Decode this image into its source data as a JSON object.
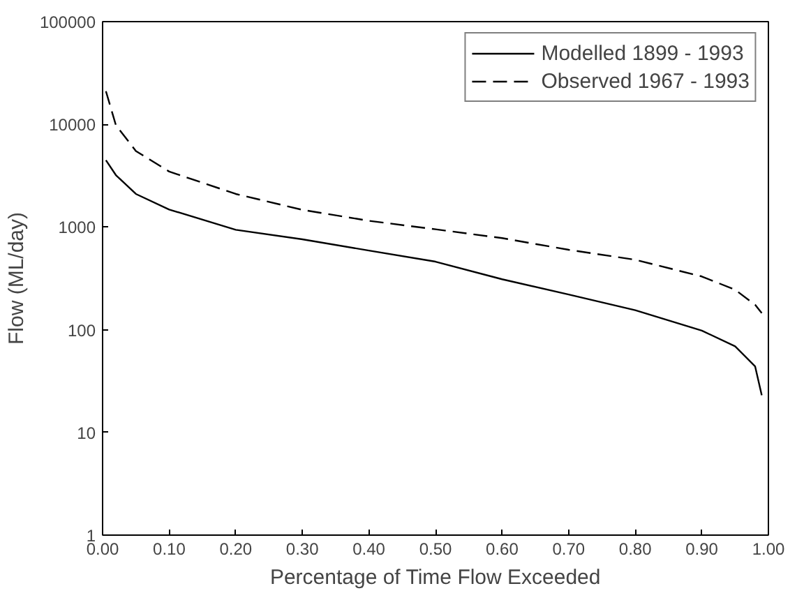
{
  "chart_data": {
    "type": "line",
    "xlabel": "Percentage of Time Flow Exceeded",
    "ylabel": "Flow (ML/day)",
    "log": "y",
    "xlim": [
      0,
      1
    ],
    "ylim": [
      1,
      100000
    ],
    "xticks": [
      {
        "value": 0,
        "label": "0.00"
      },
      {
        "value": 0.1,
        "label": "0.10"
      },
      {
        "value": 0.2,
        "label": "0.20"
      },
      {
        "value": 0.3,
        "label": "0.30"
      },
      {
        "value": 0.4,
        "label": "0.40"
      },
      {
        "value": 0.5,
        "label": "0.50"
      },
      {
        "value": 0.6,
        "label": "0.60"
      },
      {
        "value": 0.7,
        "label": "0.70"
      },
      {
        "value": 0.8,
        "label": "0.80"
      },
      {
        "value": 0.9,
        "label": "0.90"
      },
      {
        "value": 1,
        "label": "1.00"
      }
    ],
    "yticks": [
      1,
      10,
      100,
      1000,
      10000,
      100000
    ],
    "grid": false,
    "legend": "top right",
    "marker": "none",
    "x": [
      0.005,
      0.02,
      0.05,
      0.1,
      0.2,
      0.3,
      0.4,
      0.5,
      0.6,
      0.7,
      0.8,
      0.9,
      0.95,
      0.98,
      0.99
    ],
    "series": [
      {
        "name": "Modelled 1899 - 1993",
        "color": "#000000",
        "line_style": "solid",
        "values": [
          4470,
          3200,
          2100,
          1480,
          940,
          760,
          590,
          460,
          310,
          220,
          155,
          98,
          69,
          44,
          23
        ]
      },
      {
        "name": "Observed 1967 - 1993",
        "color": "#000000",
        "line_style": "dashed",
        "values": [
          21000,
          9800,
          5500,
          3470,
          2100,
          1470,
          1150,
          950,
          780,
          600,
          480,
          330,
          245,
          175,
          145
        ]
      }
    ]
  }
}
